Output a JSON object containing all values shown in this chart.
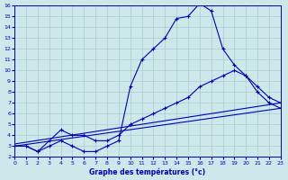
{
  "xlabel": "Graphe des températures (°c)",
  "bg_color": "#cce8ea",
  "grid_color": "#aacccc",
  "line_color": "#0000bb",
  "xlim": [
    0,
    23
  ],
  "ylim": [
    2,
    16
  ],
  "xticks": [
    0,
    1,
    2,
    3,
    4,
    5,
    6,
    7,
    8,
    9,
    10,
    11,
    12,
    13,
    14,
    15,
    16,
    17,
    18,
    19,
    20,
    21,
    22,
    23
  ],
  "yticks": [
    2,
    3,
    4,
    5,
    6,
    7,
    8,
    9,
    10,
    11,
    12,
    13,
    14,
    15,
    16
  ],
  "line1_x": [
    0,
    1,
    2,
    3,
    4,
    5,
    6,
    7,
    8,
    9,
    10,
    11,
    12,
    13,
    14,
    15,
    16,
    17,
    18,
    19,
    20,
    21,
    22,
    23
  ],
  "line1_y": [
    3.0,
    3.0,
    2.5,
    3.0,
    3.5,
    3.0,
    2.5,
    2.5,
    3.0,
    3.5,
    8.5,
    11.0,
    12.0,
    13.0,
    14.8,
    15.0,
    16.2,
    15.5,
    12.0,
    10.5,
    9.5,
    8.0,
    7.0,
    6.5
  ],
  "line2_x": [
    0,
    1,
    2,
    3,
    4,
    5,
    6,
    7,
    8,
    9,
    10,
    11,
    12,
    13,
    14,
    15,
    16,
    17,
    18,
    19,
    20,
    21,
    22,
    23
  ],
  "line2_y": [
    3.0,
    3.0,
    2.5,
    3.5,
    4.5,
    4.0,
    4.0,
    3.5,
    3.5,
    4.0,
    5.0,
    5.5,
    6.0,
    6.5,
    7.0,
    7.5,
    8.5,
    9.0,
    9.5,
    10.0,
    9.5,
    8.5,
    7.5,
    7.0
  ],
  "line3_x": [
    0,
    23
  ],
  "line3_y": [
    3.2,
    7.0
  ],
  "line4_x": [
    0,
    23
  ],
  "line4_y": [
    3.0,
    6.5
  ]
}
